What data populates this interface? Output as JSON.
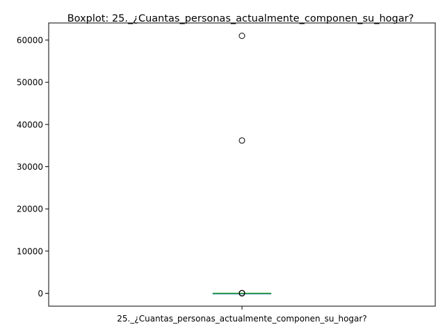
{
  "chart_data": {
    "type": "boxplot",
    "title": "Boxplot: 25._¿Cuantas_personas_actualmente_componen_su_hogar?",
    "xlabel": "",
    "ylabel": "",
    "categories": [
      "25._¿Cuantas_personas_actualmente_componen_su_hogar?"
    ],
    "ylim": [
      -3050,
      64050
    ],
    "yticks": [
      0,
      10000,
      20000,
      30000,
      40000,
      50000,
      60000
    ],
    "ytick_labels": [
      "0",
      "10000",
      "20000",
      "30000",
      "40000",
      "50000",
      "60000"
    ],
    "grid": false,
    "legend": "none",
    "boxes": [
      {
        "category": "25._¿Cuantas_personas_actualmente_componen_su_hogar?",
        "whisker_low": 0,
        "q1": 2,
        "median": 3,
        "q3": 5,
        "whisker_high": 9,
        "outliers": [
          61000,
          36200,
          40,
          30,
          25,
          20,
          15,
          12
        ]
      }
    ],
    "colors": {
      "box": "#1f77b4",
      "median": "#2ca02c",
      "outlier_edge": "#000000",
      "axes": "#000000"
    }
  }
}
